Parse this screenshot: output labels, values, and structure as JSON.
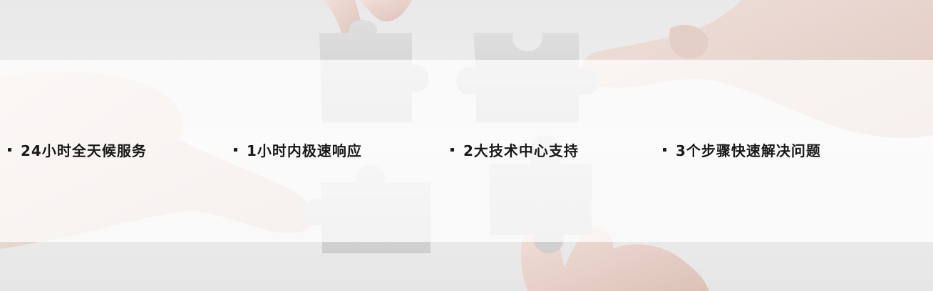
{
  "features": [
    {
      "label": "24小时全天候服务"
    },
    {
      "label": "1小时内极速响应"
    },
    {
      "label": "2大技术中心支持"
    },
    {
      "label": "3个步骤快速解决问题"
    }
  ],
  "colors": {
    "background": "#ececec",
    "text": "#1a1a1a",
    "overlay": "#ffffff",
    "puzzle": "#d9d9d9",
    "skin": "#e8d4cc"
  },
  "icons": [
    "puzzle-piece-icon",
    "hand-icon",
    "bullet-icon"
  ]
}
